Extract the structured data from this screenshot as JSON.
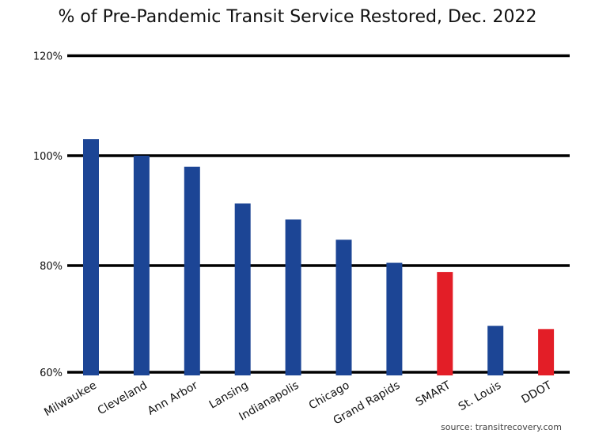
{
  "chart_data": {
    "type": "bar",
    "title": "% of Pre-Pandemic Transit Service Restored, Dec. 2022",
    "xlabel": "",
    "ylabel": "",
    "ylim": [
      60,
      120
    ],
    "yticks": [
      60,
      80,
      100,
      120
    ],
    "ytick_labels": [
      "60%",
      "80%",
      "100%",
      "120%"
    ],
    "grid": true,
    "categories": [
      "Milwaukee",
      "Cleveland",
      "Ann Arbor",
      "Lansing",
      "Indianapolis",
      "Chicago",
      "Grand Rapids",
      "SMART",
      "St. Louis",
      "DDOT"
    ],
    "values": [
      103.3,
      100.0,
      98.0,
      91.3,
      88.4,
      84.7,
      80.5,
      78.8,
      68.7,
      68.1
    ],
    "bar_colors": [
      "#1c4595",
      "#1c4595",
      "#1c4595",
      "#1c4595",
      "#1c4595",
      "#1c4595",
      "#1c4595",
      "#e31e27",
      "#1c4595",
      "#e31e27"
    ],
    "source": "source: transitrecovery.com"
  }
}
